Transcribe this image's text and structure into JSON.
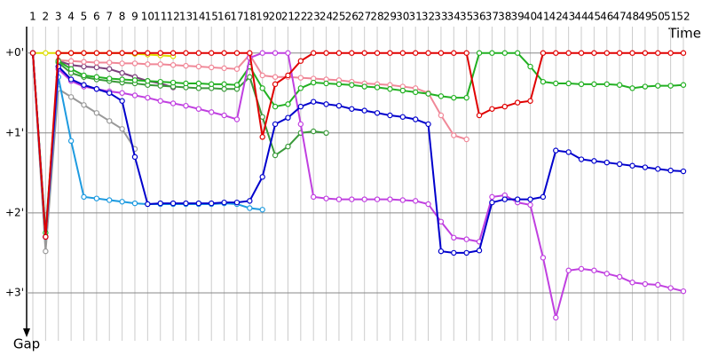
{
  "chart_data": {
    "type": "line",
    "x_label": "Time",
    "y_label": "Gap",
    "categories": [
      "1",
      "2",
      "3",
      "4",
      "5",
      "6",
      "7",
      "8",
      "9",
      "10",
      "11",
      "12",
      "13",
      "14",
      "15",
      "16",
      "17",
      "18",
      "19",
      "20",
      "21",
      "22",
      "23",
      "24",
      "25",
      "26",
      "27",
      "28",
      "29",
      "30",
      "31",
      "32",
      "33",
      "34",
      "35",
      "36",
      "37",
      "38",
      "39",
      "40",
      "41",
      "42",
      "43",
      "44",
      "45",
      "46",
      "47",
      "48",
      "49",
      "50",
      "51",
      "52"
    ],
    "ylim": [
      -0.33,
      3.6
    ],
    "yticks": [
      {
        "value": 0,
        "label": "+0'"
      },
      {
        "value": 1,
        "label": "+1'"
      },
      {
        "value": 2,
        "label": "+2'"
      },
      {
        "value": 3,
        "label": "+3'"
      }
    ],
    "inverted_y": true,
    "grid": true,
    "series": [
      {
        "color": "#dddd00",
        "values": [
          0,
          0,
          0,
          0,
          0,
          0,
          0,
          0,
          0.01,
          0.02,
          0.03,
          0.04,
          null,
          null,
          null,
          null,
          null,
          null,
          null,
          null,
          null,
          null,
          null,
          null,
          null,
          null,
          null,
          null,
          null,
          null,
          null,
          null,
          null,
          null,
          null,
          null,
          null,
          null,
          null,
          null,
          null,
          null,
          null,
          null,
          null,
          null,
          null,
          null,
          null,
          null,
          null,
          null
        ]
      },
      {
        "color": "#999999",
        "values": [
          0,
          2.48,
          0.45,
          0.55,
          0.65,
          0.75,
          0.85,
          0.95,
          1.2,
          null,
          null,
          null,
          null,
          null,
          null,
          null,
          null,
          null,
          null,
          null,
          null,
          null,
          null,
          null,
          null,
          null,
          null,
          null,
          null,
          null,
          null,
          null,
          null,
          null,
          null,
          null,
          null,
          null,
          null,
          null,
          null,
          null,
          null,
          null,
          null,
          null,
          null,
          null,
          null,
          null,
          null,
          null
        ]
      },
      {
        "color": "#7b3f7b",
        "values": [
          0,
          2.3,
          0.1,
          0.15,
          0.17,
          0.18,
          0.2,
          0.25,
          0.3,
          0.35,
          0.38,
          0.43,
          null,
          null,
          null,
          null,
          null,
          null,
          null,
          null,
          null,
          null,
          null,
          null,
          null,
          null,
          null,
          null,
          null,
          null,
          null,
          null,
          null,
          null,
          null,
          null,
          null,
          null,
          null,
          null,
          null,
          null,
          null,
          null,
          null,
          null,
          null,
          null,
          null,
          null,
          null,
          null
        ]
      },
      {
        "color": "#1e9be0",
        "values": [
          0,
          2.3,
          0.3,
          1.1,
          1.8,
          1.82,
          1.84,
          1.86,
          1.88,
          1.89,
          1.89,
          1.89,
          1.89,
          1.89,
          1.89,
          1.88,
          1.89,
          1.94,
          1.96,
          null,
          null,
          null,
          null,
          null,
          null,
          null,
          null,
          null,
          null,
          null,
          null,
          null,
          null,
          null,
          null,
          null,
          null,
          null,
          null,
          null,
          null,
          null,
          null,
          null,
          null,
          null,
          null,
          null,
          null,
          null,
          null,
          null
        ]
      },
      {
        "color": "#f08898",
        "values": [
          0,
          2.3,
          0.09,
          0.1,
          0.11,
          0.12,
          0.12,
          0.13,
          0.13,
          0.14,
          0.14,
          0.15,
          0.16,
          0.17,
          0.18,
          0.19,
          0.2,
          0.02,
          0.28,
          0.3,
          0.3,
          0.31,
          0.32,
          0.33,
          0.34,
          0.36,
          0.38,
          0.39,
          0.4,
          0.42,
          0.44,
          0.5,
          0.78,
          1.03,
          1.08,
          null,
          null,
          null,
          null,
          null,
          null,
          null,
          null,
          null,
          null,
          null,
          null,
          null,
          null,
          null,
          null,
          null
        ]
      },
      {
        "color": "#3a9a3a",
        "values": [
          0,
          2.3,
          0.12,
          0.25,
          0.3,
          0.33,
          0.35,
          0.37,
          0.38,
          0.4,
          0.41,
          0.42,
          0.43,
          0.44,
          0.44,
          0.45,
          0.45,
          0.3,
          0.8,
          1.28,
          1.17,
          1.0,
          0.98,
          1.0,
          null,
          null,
          null,
          null,
          null,
          null,
          null,
          null,
          null,
          null,
          null,
          null,
          null,
          null,
          null,
          null,
          null,
          null,
          null,
          null,
          null,
          null,
          null,
          null,
          null,
          null,
          null,
          null
        ]
      },
      {
        "color": "#22b022",
        "values": [
          0,
          2.25,
          0.1,
          0.2,
          0.28,
          0.3,
          0.32,
          0.33,
          0.34,
          0.35,
          0.36,
          0.37,
          0.38,
          0.38,
          0.39,
          0.39,
          0.4,
          0.17,
          0.44,
          0.67,
          0.64,
          0.44,
          0.37,
          0.38,
          0.39,
          0.4,
          0.42,
          0.43,
          0.45,
          0.47,
          0.49,
          0.51,
          0.54,
          0.56,
          0.56,
          0,
          0,
          0,
          0,
          0.17,
          0.36,
          0.38,
          0.38,
          0.39,
          0.39,
          0.39,
          0.4,
          0.44,
          0.42,
          0.41,
          0.41,
          0.4
        ]
      },
      {
        "color": "#c040e0",
        "values": [
          0,
          2.3,
          0.2,
          0.35,
          0.42,
          0.45,
          0.48,
          0.5,
          0.53,
          0.56,
          0.6,
          0.63,
          0.66,
          0.7,
          0.74,
          0.78,
          0.83,
          0.06,
          0,
          0,
          0,
          0.89,
          1.8,
          1.82,
          1.83,
          1.83,
          1.83,
          1.83,
          1.83,
          1.84,
          1.85,
          1.89,
          2.11,
          2.31,
          2.33,
          2.36,
          1.8,
          1.78,
          1.87,
          1.9,
          2.56,
          3.31,
          2.72,
          2.7,
          2.72,
          2.76,
          2.8,
          2.87,
          2.89,
          2.9,
          2.94,
          2.98
        ]
      },
      {
        "color": "#0000cc",
        "values": [
          0,
          2.3,
          0.17,
          0.33,
          0.4,
          0.45,
          0.5,
          0.6,
          1.3,
          1.89,
          1.88,
          1.88,
          1.88,
          1.88,
          1.88,
          1.87,
          1.87,
          1.85,
          1.55,
          0.89,
          0.81,
          0.67,
          0.61,
          0.64,
          0.66,
          0.7,
          0.72,
          0.75,
          0.78,
          0.8,
          0.83,
          0.89,
          2.48,
          2.5,
          2.5,
          2.47,
          1.87,
          1.83,
          1.83,
          1.83,
          1.8,
          1.22,
          1.24,
          1.33,
          1.35,
          1.37,
          1.39,
          1.41,
          1.43,
          1.45,
          1.47,
          1.48
        ]
      },
      {
        "color": "#e00000",
        "values": [
          0,
          2.3,
          0,
          0,
          0,
          0,
          0,
          0,
          0,
          0,
          0,
          0,
          0,
          0,
          0,
          0,
          0,
          0,
          1.05,
          0.39,
          0.28,
          0.1,
          0,
          0,
          0,
          0,
          0,
          0,
          0,
          0,
          0,
          0,
          0,
          0,
          0,
          0.78,
          0.7,
          0.67,
          0.62,
          0.6,
          0,
          0,
          0,
          0,
          0,
          0,
          0,
          0,
          0,
          0,
          0,
          0
        ]
      }
    ]
  }
}
